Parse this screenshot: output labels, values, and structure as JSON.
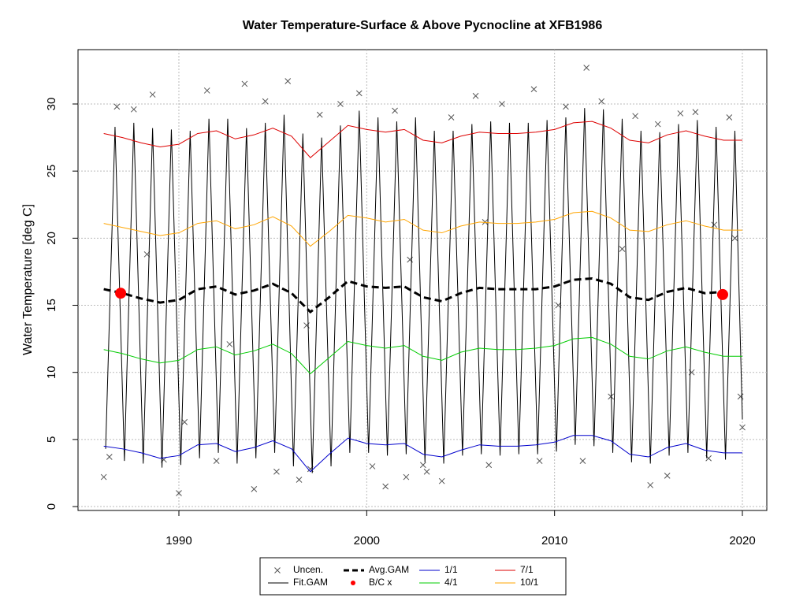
{
  "chart_data": {
    "type": "line",
    "title": "Water Temperature-Surface & Above Pycnocline at XFB1986",
    "y_label": "Water Temperature [deg C]",
    "xlim": [
      1984.63,
      2021.3
    ],
    "ylim": [
      -0.29,
      34.05
    ],
    "xticks": [
      1990,
      2000,
      2010,
      2020
    ],
    "yticks": [
      0,
      5,
      10,
      15,
      20,
      25,
      30
    ],
    "grid": true,
    "legend": "bottom",
    "series": [
      {
        "name": "Uncen.",
        "color": "#555555",
        "style": "cross",
        "x": [
          1986.0,
          1986.3,
          1986.7,
          1987.6,
          1988.6,
          1989.2,
          1990.0,
          1990.3,
          1991.5,
          1992.0,
          1993.5,
          1994.0,
          1994.6,
          1995.2,
          1995.8,
          1996.4,
          1997.0,
          1997.5,
          1998.6,
          1999.6,
          2000.3,
          2001.0,
          2001.5,
          2002.1,
          2003.0,
          2003.2,
          2004.0,
          2004.5,
          2005.8,
          2006.5,
          2007.2,
          2008.9,
          2009.2,
          2010.6,
          2011.5,
          2011.7,
          2012.5,
          2013.0,
          2014.3,
          2015.1,
          2015.5,
          2016.0,
          2016.7,
          2017.5,
          2018.2,
          2018.5,
          2019.3,
          2019.6,
          2020.0,
          2019.9,
          1988.3,
          1992.7,
          1996.8,
          2002.3,
          2006.3,
          2010.2,
          2013.6,
          2017.3
        ],
        "values": [
          2.2,
          3.7,
          29.8,
          29.6,
          30.7,
          3.5,
          1.0,
          6.3,
          31.0,
          3.4,
          31.5,
          1.3,
          30.2,
          2.6,
          31.7,
          2.0,
          2.8,
          29.2,
          30.0,
          30.8,
          3.0,
          1.5,
          29.5,
          2.2,
          3.1,
          2.6,
          1.9,
          29.0,
          30.6,
          3.1,
          30.0,
          31.1,
          3.4,
          29.8,
          3.4,
          32.7,
          30.2,
          8.2,
          29.1,
          1.6,
          28.5,
          2.3,
          29.3,
          29.4,
          3.6,
          21.0,
          29.0,
          20.0,
          5.9,
          8.2,
          18.8,
          12.1,
          13.5,
          18.4,
          21.2,
          15.0,
          19.2,
          10.0
        ]
      },
      {
        "name": "Fit.GAM",
        "color": "#000000",
        "style": "line",
        "x": [
          1986.1,
          1986.6,
          1987.1,
          1987.6,
          1988.1,
          1988.6,
          1989.1,
          1989.6,
          1990.1,
          1990.6,
          1991.1,
          1991.6,
          1992.1,
          1992.6,
          1993.1,
          1993.6,
          1994.1,
          1994.6,
          1995.1,
          1995.6,
          1996.1,
          1996.6,
          1997.1,
          1997.6,
          1998.1,
          1998.6,
          1999.1,
          1999.6,
          2000.1,
          2000.6,
          2001.1,
          2001.6,
          2002.1,
          2002.6,
          2003.1,
          2003.6,
          2004.1,
          2004.6,
          2005.1,
          2005.6,
          2006.1,
          2006.6,
          2007.1,
          2007.6,
          2008.1,
          2008.6,
          2009.1,
          2009.6,
          2010.1,
          2010.6,
          2011.1,
          2011.6,
          2012.1,
          2012.6,
          2013.1,
          2013.6,
          2014.1,
          2014.6,
          2015.1,
          2015.6,
          2016.1,
          2016.6,
          2017.1,
          2017.6,
          2018.1,
          2018.6,
          2019.1,
          2019.6,
          2020.0
        ],
        "values": [
          4.3,
          28.3,
          3.4,
          28.6,
          3.2,
          28.2,
          2.9,
          28.1,
          3.1,
          28.0,
          3.6,
          28.9,
          4.0,
          28.9,
          3.2,
          28.2,
          3.6,
          28.6,
          4.0,
          29.2,
          3.0,
          27.8,
          2.5,
          27.5,
          3.0,
          28.4,
          4.0,
          29.5,
          4.0,
          29.0,
          3.8,
          28.7,
          3.9,
          29.0,
          3.3,
          28.0,
          3.2,
          28.0,
          3.8,
          28.5,
          3.9,
          28.7,
          3.8,
          28.6,
          3.9,
          28.6,
          3.9,
          28.8,
          4.1,
          29.0,
          4.6,
          29.7,
          4.5,
          29.6,
          4.0,
          28.9,
          3.3,
          28.0,
          3.2,
          27.9,
          3.8,
          28.5,
          4.0,
          28.8,
          3.6,
          28.3,
          3.5,
          28.0,
          6.5
        ]
      },
      {
        "name": "Avg.GAM",
        "color": "#000000",
        "style": "dashed",
        "x": [
          1986,
          1987,
          1988,
          1989,
          1990,
          1991,
          1992,
          1993,
          1994,
          1995,
          1996,
          1997,
          1998,
          1999,
          2000,
          2001,
          2002,
          2003,
          2004,
          2005,
          2006,
          2007,
          2008,
          2009,
          2010,
          2011,
          2012,
          2013,
          2014,
          2015,
          2016,
          2017,
          2018,
          2019
        ],
        "values": [
          16.2,
          15.9,
          15.5,
          15.2,
          15.4,
          16.2,
          16.4,
          15.8,
          16.1,
          16.6,
          15.9,
          14.5,
          15.6,
          16.8,
          16.4,
          16.3,
          16.4,
          15.6,
          15.3,
          15.9,
          16.3,
          16.2,
          16.2,
          16.2,
          16.4,
          16.9,
          17.0,
          16.6,
          15.6,
          15.4,
          16.0,
          16.3,
          15.9,
          16.0
        ]
      },
      {
        "name": "B/C x",
        "color": "#ff0000",
        "style": "dot",
        "x": [
          1986.9,
          2018.95
        ],
        "values": [
          15.9,
          15.8
        ]
      },
      {
        "name": "1/1",
        "color": "#0000cc",
        "style": "line",
        "x": [
          1986,
          1987,
          1988,
          1989,
          1990,
          1991,
          1992,
          1993,
          1994,
          1995,
          1996,
          1997,
          1998,
          1999,
          2000,
          2001,
          2002,
          2003,
          2004,
          2005,
          2006,
          2007,
          2008,
          2009,
          2010,
          2011,
          2012,
          2013,
          2014,
          2015,
          2016,
          2017,
          2018,
          2019,
          2020
        ],
        "values": [
          4.5,
          4.3,
          4.0,
          3.6,
          3.8,
          4.6,
          4.7,
          4.1,
          4.4,
          4.9,
          4.3,
          2.6,
          3.9,
          5.1,
          4.7,
          4.6,
          4.7,
          3.9,
          3.7,
          4.2,
          4.6,
          4.5,
          4.5,
          4.6,
          4.8,
          5.3,
          5.3,
          4.9,
          3.9,
          3.7,
          4.4,
          4.7,
          4.2,
          4.0,
          4.0
        ]
      },
      {
        "name": "4/1",
        "color": "#00cc00",
        "style": "line",
        "x": [
          1986,
          1987,
          1988,
          1989,
          1990,
          1991,
          1992,
          1993,
          1994,
          1995,
          1996,
          1997,
          1998,
          1999,
          2000,
          2001,
          2002,
          2003,
          2004,
          2005,
          2006,
          2007,
          2008,
          2009,
          2010,
          2011,
          2012,
          2013,
          2014,
          2015,
          2016,
          2017,
          2018,
          2019,
          2020
        ],
        "values": [
          11.7,
          11.4,
          11.0,
          10.7,
          10.9,
          11.7,
          11.9,
          11.3,
          11.6,
          12.1,
          11.4,
          9.9,
          11.1,
          12.3,
          12.0,
          11.8,
          12.0,
          11.2,
          10.9,
          11.5,
          11.8,
          11.7,
          11.7,
          11.8,
          12.0,
          12.5,
          12.6,
          12.1,
          11.2,
          11.0,
          11.6,
          11.9,
          11.5,
          11.2,
          11.2
        ]
      },
      {
        "name": "7/1",
        "color": "#dd0000",
        "style": "line",
        "x": [
          1986,
          1987,
          1988,
          1989,
          1990,
          1991,
          1992,
          1993,
          1994,
          1995,
          1996,
          1997,
          1998,
          1999,
          2000,
          2001,
          2002,
          2003,
          2004,
          2005,
          2006,
          2007,
          2008,
          2009,
          2010,
          2011,
          2012,
          2013,
          2014,
          2015,
          2016,
          2017,
          2018,
          2019,
          2020
        ],
        "values": [
          27.8,
          27.5,
          27.1,
          26.8,
          27.0,
          27.8,
          28.0,
          27.4,
          27.7,
          28.2,
          27.6,
          26.0,
          27.2,
          28.4,
          28.1,
          27.9,
          28.1,
          27.3,
          27.1,
          27.6,
          27.9,
          27.8,
          27.8,
          27.9,
          28.1,
          28.6,
          28.7,
          28.2,
          27.3,
          27.1,
          27.7,
          28.0,
          27.6,
          27.3,
          27.3
        ]
      },
      {
        "name": "10/1",
        "color": "#ffa500",
        "style": "line",
        "x": [
          1986,
          1987,
          1988,
          1989,
          1990,
          1991,
          1992,
          1993,
          1994,
          1995,
          1996,
          1997,
          1998,
          1999,
          2000,
          2001,
          2002,
          2003,
          2004,
          2005,
          2006,
          2007,
          2008,
          2009,
          2010,
          2011,
          2012,
          2013,
          2014,
          2015,
          2016,
          2017,
          2018,
          2019,
          2020
        ],
        "values": [
          21.1,
          20.8,
          20.5,
          20.2,
          20.4,
          21.1,
          21.3,
          20.7,
          21.0,
          21.6,
          20.9,
          19.4,
          20.5,
          21.7,
          21.5,
          21.2,
          21.4,
          20.6,
          20.4,
          20.9,
          21.2,
          21.1,
          21.1,
          21.2,
          21.4,
          21.9,
          22.0,
          21.5,
          20.6,
          20.5,
          21.0,
          21.3,
          20.9,
          20.6,
          20.6
        ]
      }
    ]
  }
}
